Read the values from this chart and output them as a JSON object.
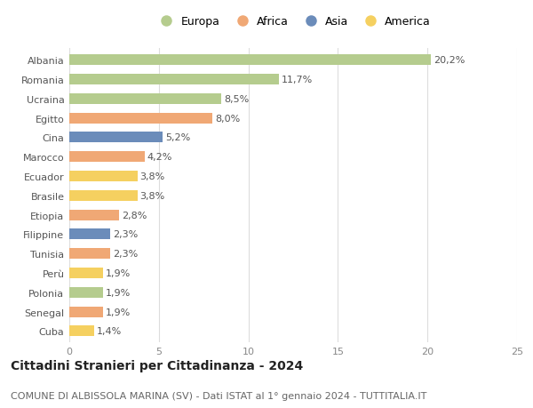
{
  "categories": [
    "Albania",
    "Romania",
    "Ucraina",
    "Egitto",
    "Cina",
    "Marocco",
    "Ecuador",
    "Brasile",
    "Etiopia",
    "Filippine",
    "Tunisia",
    "Perù",
    "Polonia",
    "Senegal",
    "Cuba"
  ],
  "values": [
    20.2,
    11.7,
    8.5,
    8.0,
    5.2,
    4.2,
    3.8,
    3.8,
    2.8,
    2.3,
    2.3,
    1.9,
    1.9,
    1.9,
    1.4
  ],
  "labels": [
    "20,2%",
    "11,7%",
    "8,5%",
    "8,0%",
    "5,2%",
    "4,2%",
    "3,8%",
    "3,8%",
    "2,8%",
    "2,3%",
    "2,3%",
    "1,9%",
    "1,9%",
    "1,9%",
    "1,4%"
  ],
  "continents": [
    "Europa",
    "Europa",
    "Europa",
    "Africa",
    "Asia",
    "Africa",
    "America",
    "America",
    "Africa",
    "Asia",
    "Africa",
    "America",
    "Europa",
    "Africa",
    "America"
  ],
  "continent_colors": {
    "Europa": "#b5cc8e",
    "Africa": "#f0a875",
    "Asia": "#6b8cba",
    "America": "#f5d060"
  },
  "legend_order": [
    "Europa",
    "Africa",
    "Asia",
    "America"
  ],
  "xlim": [
    0,
    25
  ],
  "xticks": [
    0,
    5,
    10,
    15,
    20,
    25
  ],
  "title": "Cittadini Stranieri per Cittadinanza - 2024",
  "subtitle": "COMUNE DI ALBISSOLA MARINA (SV) - Dati ISTAT al 1° gennaio 2024 - TUTTITALIA.IT",
  "background_color": "#ffffff",
  "bar_height": 0.55,
  "label_fontsize": 8,
  "ytick_fontsize": 8,
  "xtick_fontsize": 8,
  "title_fontsize": 10,
  "subtitle_fontsize": 8
}
